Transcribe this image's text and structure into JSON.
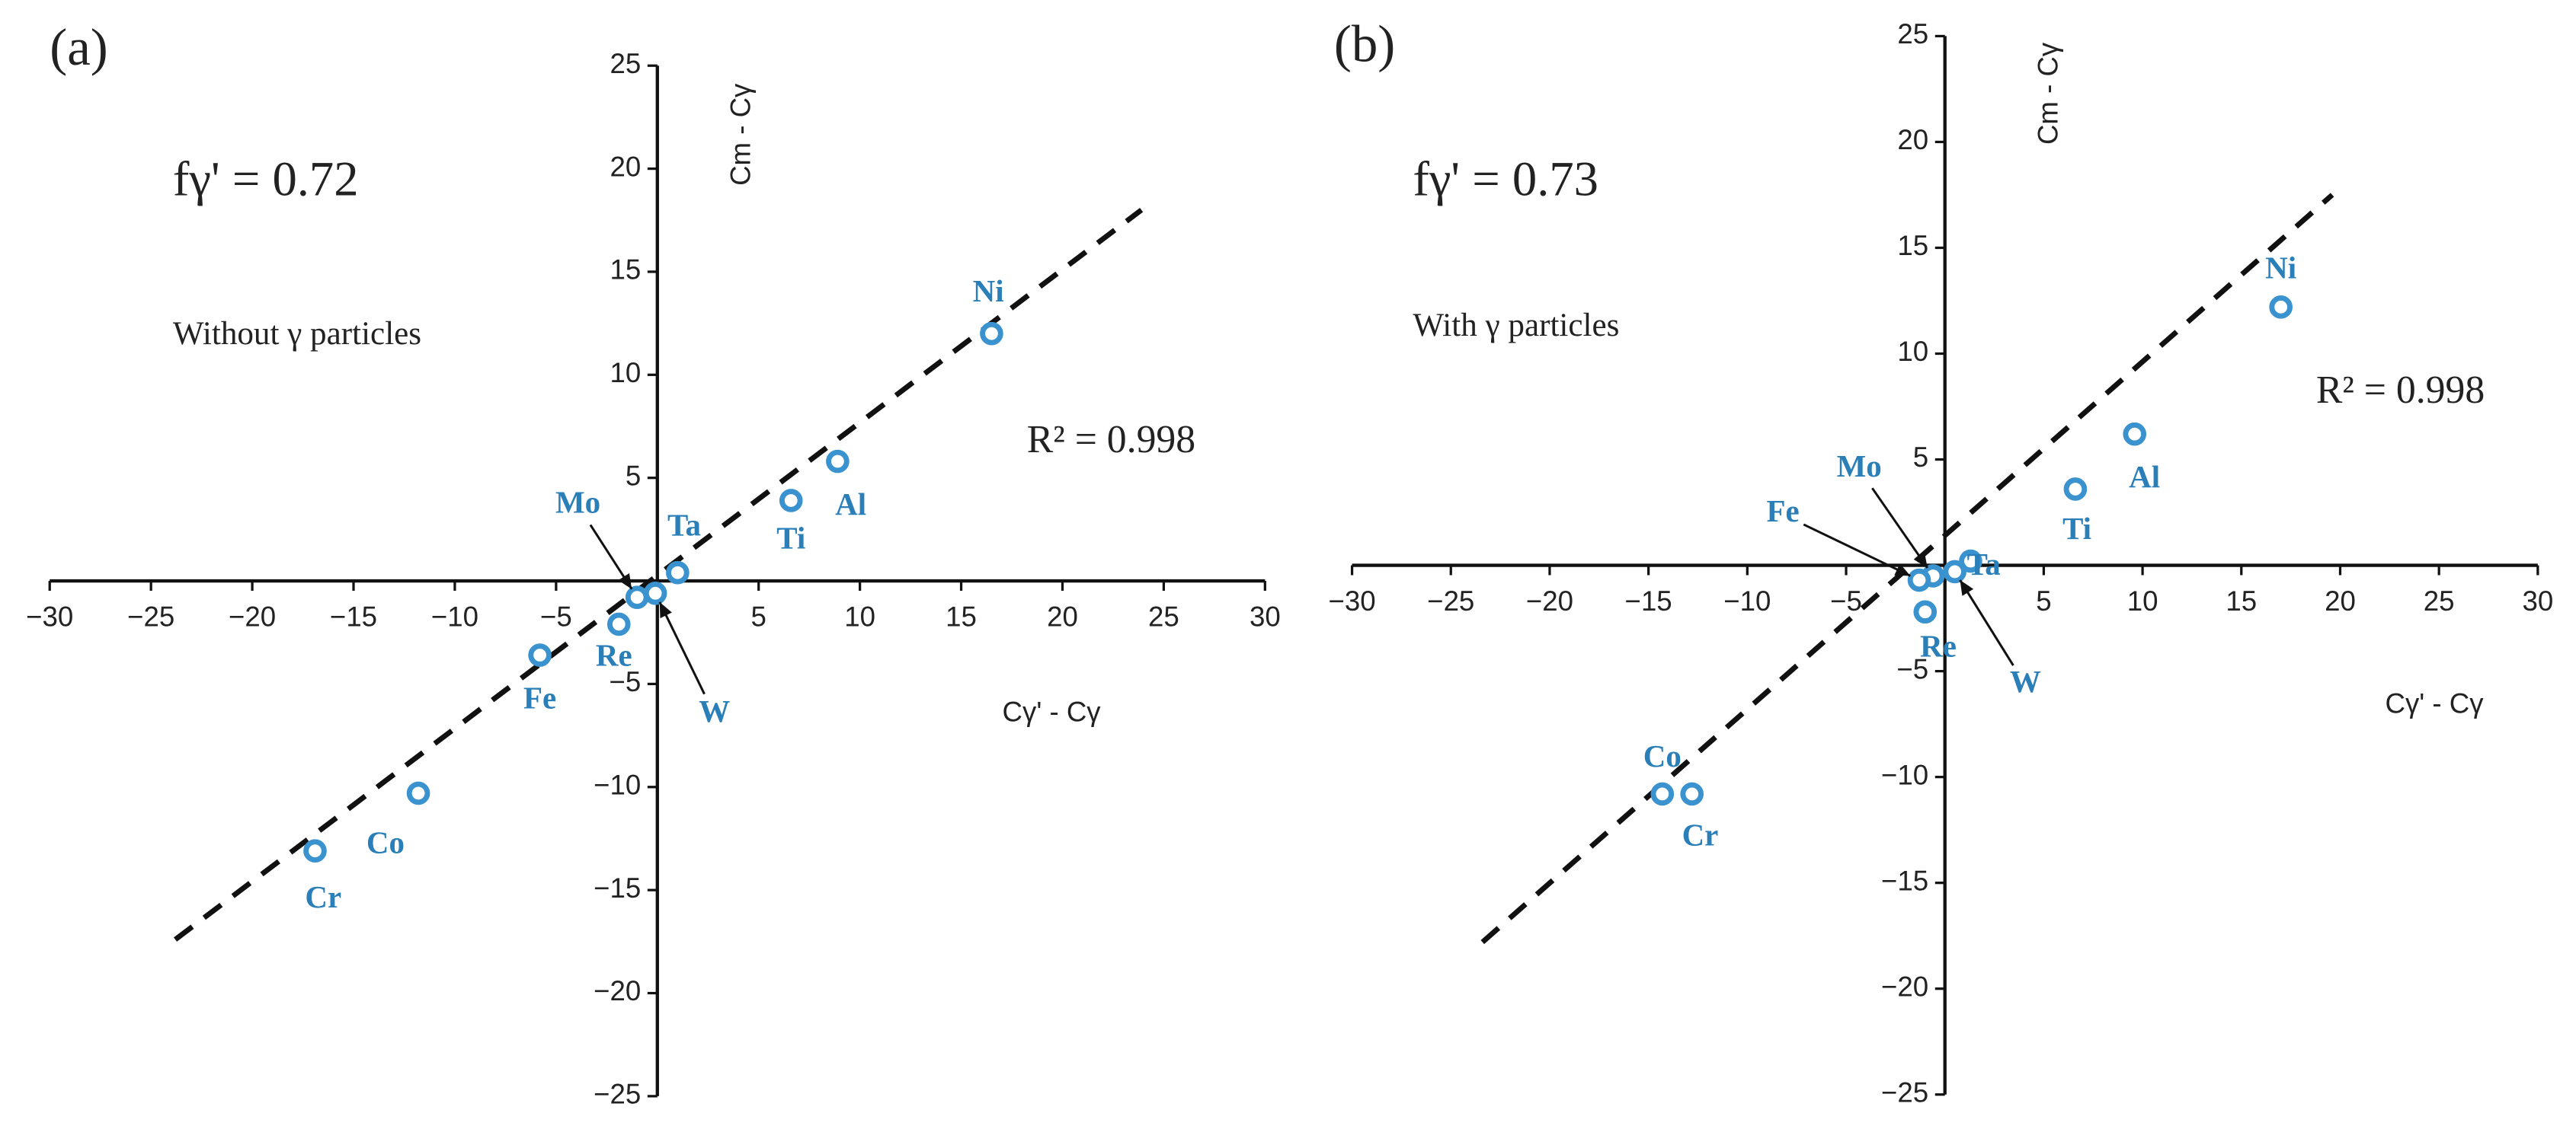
{
  "chart_data": [
    {
      "type": "scatter",
      "title": "(a)",
      "annotations": [
        "fγ' = 0.72",
        "Without γ particles",
        "R² = 0.998"
      ],
      "xlabel": "Cγ' - Cγ",
      "ylabel": "Cm - Cγ",
      "labels": [
        "Ni",
        "Al",
        "Ti",
        "Ta",
        "W",
        "Mo",
        "Re",
        "Fe",
        "Co",
        "Cr"
      ],
      "x": [
        16.5,
        8.9,
        6.6,
        1.0,
        -0.1,
        -1.0,
        -1.9,
        -5.8,
        -11.8,
        -16.9
      ],
      "y": [
        12.0,
        5.8,
        3.9,
        0.4,
        -0.6,
        -0.8,
        -2.1,
        -3.6,
        -10.3,
        -13.1
      ],
      "fit_line": {
        "x": [
          -23.8,
          23.9
        ],
        "y": [
          -17.4,
          18.0
        ]
      },
      "color": "#3a93cf",
      "xlim": [
        -30,
        30
      ],
      "ylim": [
        -25,
        25
      ],
      "xticks": [
        {
          "value": -30,
          "label": "−30"
        },
        {
          "value": -25,
          "label": "−25"
        },
        {
          "value": -20,
          "label": "−20"
        },
        {
          "value": -15,
          "label": "−15"
        },
        {
          "value": -10,
          "label": "−10"
        },
        {
          "value": -5,
          "label": "−5"
        },
        5,
        10,
        15,
        20,
        25,
        30
      ],
      "yticks": [
        25,
        20,
        15,
        10,
        5,
        {
          "value": -5,
          "label": "−5"
        },
        {
          "value": -10,
          "label": "−10"
        },
        {
          "value": -15,
          "label": "−15"
        },
        {
          "value": -20,
          "label": "−20"
        },
        {
          "value": -25,
          "label": "−25"
        }
      ]
    },
    {
      "type": "scatter",
      "title": "(b)",
      "annotations": [
        "fγ' = 0.73",
        "With γ particles",
        "R² = 0.998"
      ],
      "xlabel": "Cγ' - Cγ",
      "ylabel": "Cm - Cγ",
      "labels": [
        "Ni",
        "Al",
        "Ti",
        "Ta",
        "W",
        "Mo",
        "Re",
        "Fe",
        "Co",
        "Cr"
      ],
      "x": [
        17.0,
        9.6,
        6.6,
        1.3,
        0.5,
        -0.6,
        -1.0,
        -1.3,
        -14.3,
        -12.8
      ],
      "y": [
        12.2,
        6.2,
        3.6,
        0.2,
        -0.3,
        -0.5,
        -2.2,
        -0.7,
        -10.8,
        -10.8
      ],
      "fit_line": {
        "x": [
          -23.4,
          19.6
        ],
        "y": [
          -17.8,
          17.5
        ]
      },
      "color": "#3a93cf",
      "xlim": [
        -30,
        30
      ],
      "ylim": [
        -25,
        25
      ],
      "xticks": [
        {
          "value": -30,
          "label": "−30"
        },
        {
          "value": -25,
          "label": "−25"
        },
        {
          "value": -20,
          "label": "−20"
        },
        {
          "value": -15,
          "label": "−15"
        },
        {
          "value": -10,
          "label": "−10"
        },
        {
          "value": -5,
          "label": "−5"
        },
        5,
        10,
        15,
        20,
        25,
        30
      ],
      "yticks": [
        25,
        20,
        15,
        10,
        5,
        {
          "value": -5,
          "label": "−5"
        },
        {
          "value": -10,
          "label": "−10"
        },
        {
          "value": -15,
          "label": "−15"
        },
        {
          "value": -20,
          "label": "−20"
        },
        {
          "value": -25,
          "label": "−25"
        }
      ]
    }
  ]
}
